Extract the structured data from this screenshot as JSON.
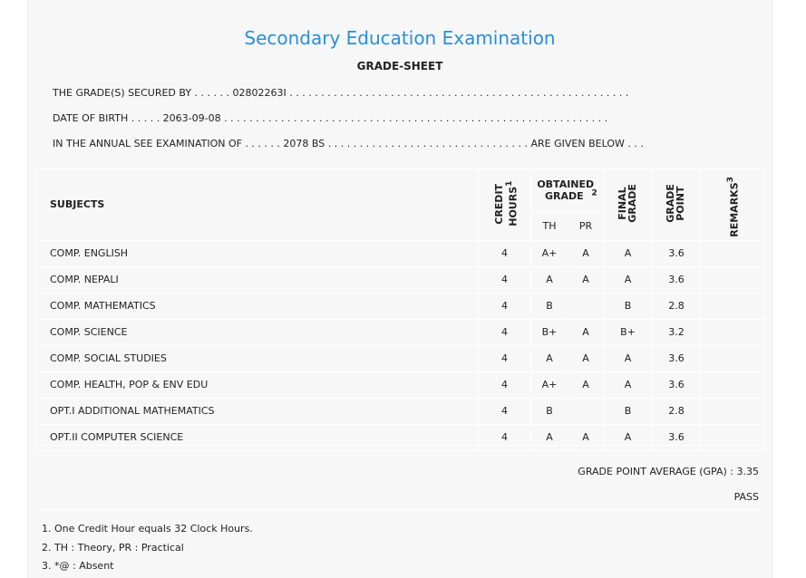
{
  "header": {
    "title": "Secondary Education Examination",
    "subtitle": "GRADE-SHEET"
  },
  "info": {
    "line1": "THE GRADE(S) SECURED BY . . . . . . 02802263I . . . . . . . . . . . . . . . . . . . . . . . . . . . . . . . . . . . . . . . . . . . . . . . . . . . . . .",
    "line2": "DATE OF BIRTH . . . . . 2063-09-08 . . . . . . . . . . . . . . . . . . . . . . . . . . . . . . . . . . . . . . . . . . . . . . . . . . . . . . . . . . . . .",
    "line3": "IN THE ANNUAL SEE EXAMINATION OF . . . . . . 2078 BS . . . . . . . . . . . . . . . . . . . . . . . . . . . . . . . . ARE GIVEN BELOW . . ."
  },
  "table": {
    "headers": {
      "subjects": "SUBJECTS",
      "credit": "CREDIT HOURS",
      "credit_sup": "1",
      "obtained": "OBTAINED GRADE",
      "obtained_sup": "2",
      "th": "TH",
      "pr": "PR",
      "final": "FINAL GRADE",
      "gp": "GRADE POINT",
      "remarks": "REMARKS",
      "remarks_sup": "3"
    },
    "rows": [
      {
        "subject": "COMP. ENGLISH",
        "credit": "4",
        "th": "A+",
        "pr": "A",
        "final": "A",
        "gp": "3.6",
        "remarks": ""
      },
      {
        "subject": "COMP. NEPALI",
        "credit": "4",
        "th": "A",
        "pr": "A",
        "final": "A",
        "gp": "3.6",
        "remarks": ""
      },
      {
        "subject": "COMP. MATHEMATICS",
        "credit": "4",
        "th": "B",
        "pr": "",
        "final": "B",
        "gp": "2.8",
        "remarks": ""
      },
      {
        "subject": "COMP. SCIENCE",
        "credit": "4",
        "th": "B+",
        "pr": "A",
        "final": "B+",
        "gp": "3.2",
        "remarks": ""
      },
      {
        "subject": "COMP. SOCIAL STUDIES",
        "credit": "4",
        "th": "A",
        "pr": "A",
        "final": "A",
        "gp": "3.6",
        "remarks": ""
      },
      {
        "subject": "COMP. HEALTH, POP & ENV EDU",
        "credit": "4",
        "th": "A+",
        "pr": "A",
        "final": "A",
        "gp": "3.6",
        "remarks": ""
      },
      {
        "subject": "OPT.I ADDITIONAL MATHEMATICS",
        "credit": "4",
        "th": "B",
        "pr": "",
        "final": "B",
        "gp": "2.8",
        "remarks": ""
      },
      {
        "subject": "OPT.II COMPUTER SCIENCE",
        "credit": "4",
        "th": "A",
        "pr": "A",
        "final": "A",
        "gp": "3.6",
        "remarks": ""
      }
    ]
  },
  "summary": {
    "gpa": "GRADE POINT AVERAGE (GPA) : 3.35",
    "result": "PASS"
  },
  "notes": [
    "1. One Credit Hour equals 32 Clock Hours.",
    "2. TH : Theory, PR : Practical",
    "3. *@ : Absent"
  ]
}
